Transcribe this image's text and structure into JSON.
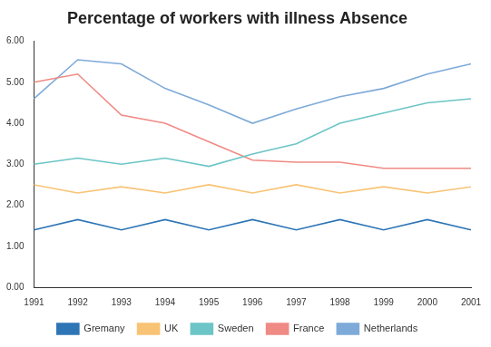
{
  "chart_data": {
    "type": "line",
    "title": "Percentage of workers with illness Absence",
    "categories": [
      "1991",
      "1992",
      "1993",
      "1994",
      "1995",
      "1996",
      "1997",
      "1998",
      "1999",
      "2000",
      "2001"
    ],
    "series": [
      {
        "name": "Gremany",
        "color": "#2e75b6",
        "values": [
          1.4,
          1.65,
          1.4,
          1.65,
          1.4,
          1.65,
          1.4,
          1.65,
          1.4,
          1.65,
          1.4
        ]
      },
      {
        "name": "UK",
        "color": "#f8c374",
        "values": [
          2.5,
          2.3,
          2.45,
          2.3,
          2.5,
          2.3,
          2.5,
          2.3,
          2.45,
          2.3,
          2.45
        ]
      },
      {
        "name": "Sweden",
        "color": "#6cc5c6",
        "values": [
          3.0,
          3.15,
          3.0,
          3.15,
          2.95,
          3.25,
          3.5,
          4.0,
          4.25,
          4.5,
          4.6
        ]
      },
      {
        "name": "France",
        "color": "#f08a84",
        "values": [
          5.0,
          5.2,
          4.2,
          4.0,
          3.55,
          3.1,
          3.05,
          3.05,
          2.9,
          2.9,
          2.9
        ]
      },
      {
        "name": "Netherlands",
        "color": "#7eaad9",
        "values": [
          4.6,
          5.55,
          5.45,
          4.85,
          4.45,
          4.0,
          4.35,
          4.65,
          4.85,
          5.2,
          5.45
        ]
      }
    ],
    "ylim": [
      0,
      6
    ],
    "yticks": [
      {
        "value": 0,
        "label": "0.00"
      },
      {
        "value": 1,
        "label": "1.00"
      },
      {
        "value": 2,
        "label": "2.00"
      },
      {
        "value": 3,
        "label": "3.00"
      },
      {
        "value": 4,
        "label": "4.00"
      },
      {
        "value": 5,
        "label": "5.00"
      },
      {
        "value": 6,
        "label": "6.00"
      }
    ],
    "grid": false,
    "legend": "bottom"
  }
}
